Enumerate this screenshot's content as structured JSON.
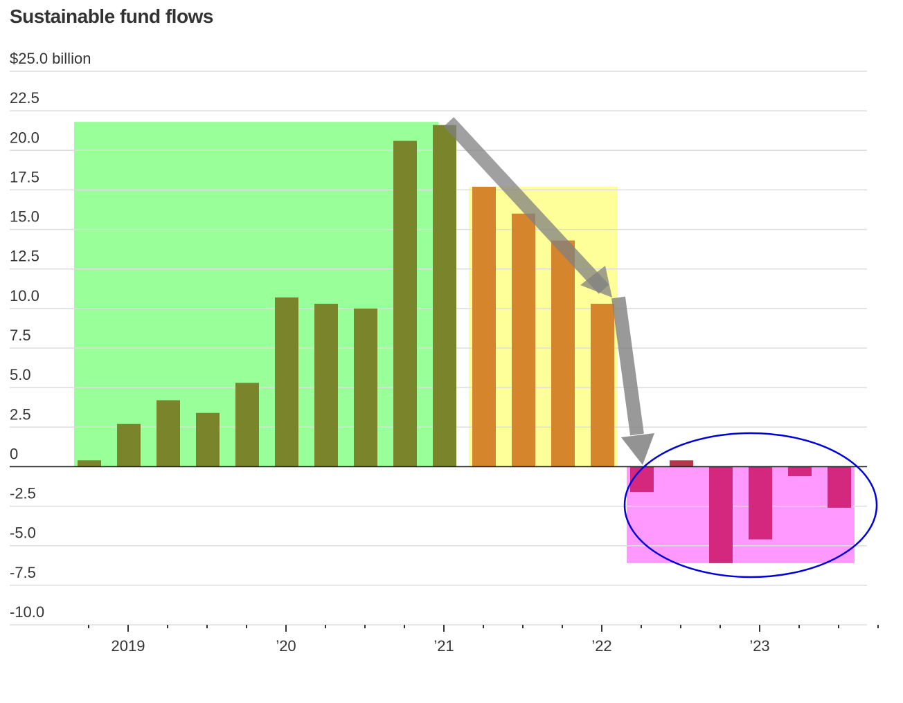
{
  "chart_data": {
    "type": "bar",
    "title": "Sustainable fund flows",
    "ylabel": "",
    "xlabel": "",
    "y_unit_label": "$25.0 billion",
    "ylim": [
      -10,
      25
    ],
    "yticks": [
      {
        "value": 25,
        "label": "$25.0 billion"
      },
      {
        "value": 22.5,
        "label": "22.5"
      },
      {
        "value": 20,
        "label": "20.0"
      },
      {
        "value": 17.5,
        "label": "17.5"
      },
      {
        "value": 15,
        "label": "15.0"
      },
      {
        "value": 12.5,
        "label": "12.5"
      },
      {
        "value": 10,
        "label": "10.0"
      },
      {
        "value": 7.5,
        "label": "7.5"
      },
      {
        "value": 5,
        "label": "5.0"
      },
      {
        "value": 2.5,
        "label": "2.5"
      },
      {
        "value": 0,
        "label": "0"
      },
      {
        "value": -2.5,
        "label": "-2.5"
      },
      {
        "value": -5,
        "label": "-5.0"
      },
      {
        "value": -7.5,
        "label": "-7.5"
      },
      {
        "value": -10,
        "label": "-10.0"
      }
    ],
    "xtick_labels": [
      {
        "label": "2019",
        "quarter_index": 1
      },
      {
        "label": "’20",
        "quarter_index": 5
      },
      {
        "label": "’21",
        "quarter_index": 9
      },
      {
        "label": "’22",
        "quarter_index": 13
      },
      {
        "label": "’23",
        "quarter_index": 17
      }
    ],
    "grid": true,
    "values": [
      0.4,
      2.7,
      4.2,
      3.4,
      5.3,
      10.7,
      10.3,
      10.0,
      20.6,
      21.6,
      17.7,
      16.0,
      14.3,
      10.3,
      -1.6,
      0.4,
      -6.1,
      -4.6,
      -0.6,
      -2.6
    ],
    "bar_colors": [
      "#7a842a",
      "#7a842a",
      "#7a842a",
      "#7a842a",
      "#7a842a",
      "#7a842a",
      "#7a842a",
      "#7a842a",
      "#7a842a",
      "#7a842a",
      "#d5852c",
      "#d5852c",
      "#d5852c",
      "#d5852c",
      "#d4287f",
      "#b5364a",
      "#d4287f",
      "#d4287f",
      "#d4287f",
      "#d4287f"
    ],
    "annotations": {
      "highlight_regions": [
        {
          "from_bar": 0,
          "to_bar": 9,
          "top": 21.8,
          "bottom": 0,
          "color": "#99ff99"
        },
        {
          "from_bar": 10,
          "to_bar": 13,
          "top": 17.7,
          "bottom": 0,
          "color": "#ffff99"
        },
        {
          "from_bar": 14,
          "to_bar": 19,
          "top": 0,
          "bottom": -6.1,
          "color": "#ff99ff"
        }
      ],
      "arrow_color": "#808080",
      "ellipse_color": "#0000dd"
    }
  }
}
